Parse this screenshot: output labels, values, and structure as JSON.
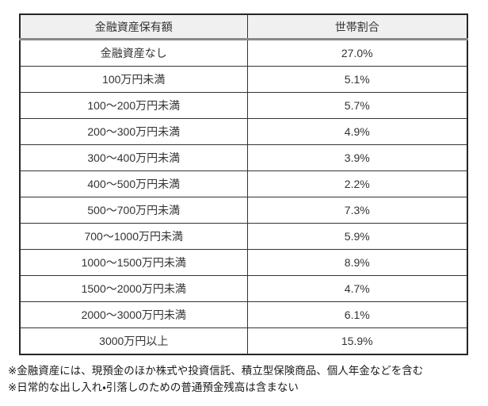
{
  "table": {
    "headers": [
      "金融資産保有額",
      "世帯割合"
    ],
    "rows": [
      {
        "label": "金融資産なし",
        "value": "27.0%"
      },
      {
        "label": "100万円未満",
        "value": "5.1%"
      },
      {
        "label": "100〜200万円未満",
        "value": "5.7%"
      },
      {
        "label": "200〜300万円未満",
        "value": "4.9%"
      },
      {
        "label": "300〜400万円未満",
        "value": "3.9%"
      },
      {
        "label": "400〜500万円未満",
        "value": "2.2%"
      },
      {
        "label": "500〜700万円未満",
        "value": "7.3%"
      },
      {
        "label": "700〜1000万円未満",
        "value": "5.9%"
      },
      {
        "label": "1000〜1500万円未満",
        "value": "8.9%"
      },
      {
        "label": "1500〜2000万円未満",
        "value": "4.7%"
      },
      {
        "label": "2000〜3000万円未満",
        "value": "6.1%"
      },
      {
        "label": "3000万円以上",
        "value": "15.9%"
      }
    ]
  },
  "footnotes": {
    "line1": "※金融資産には、現預金のほか株式や投資信託、積立型保険商品、個人年金などを含む",
    "line2": "※日常的な出し入れ・引落しのための普通預金残高は含まない"
  },
  "colors": {
    "header_bg": "#f0f0f0",
    "outer_border": "#262626",
    "inner_border": "#333333",
    "header_rule": "#8a8a8a",
    "text": "#333333"
  },
  "chart_data": {
    "type": "table",
    "title": "",
    "columns": [
      "金融資産保有額",
      "世帯割合"
    ],
    "categories": [
      "金融資産なし",
      "100万円未満",
      "100〜200万円未満",
      "200〜300万円未満",
      "300〜400万円未満",
      "400〜500万円未満",
      "500〜700万円未満",
      "700〜1000万円未満",
      "1000〜1500万円未満",
      "1500〜2000万円未満",
      "2000〜3000万円未満",
      "3000万円以上"
    ],
    "values_percent": [
      27.0,
      5.1,
      5.7,
      4.9,
      3.9,
      2.2,
      7.3,
      5.9,
      8.9,
      4.7,
      6.1,
      15.9
    ],
    "notes": [
      "※金融資産には、現預金のほか株式や投資信託、積立型保険商品、個人年金などを含む",
      "※日常的な出し入れ・引落しのための普通預金残高は含まない"
    ]
  }
}
